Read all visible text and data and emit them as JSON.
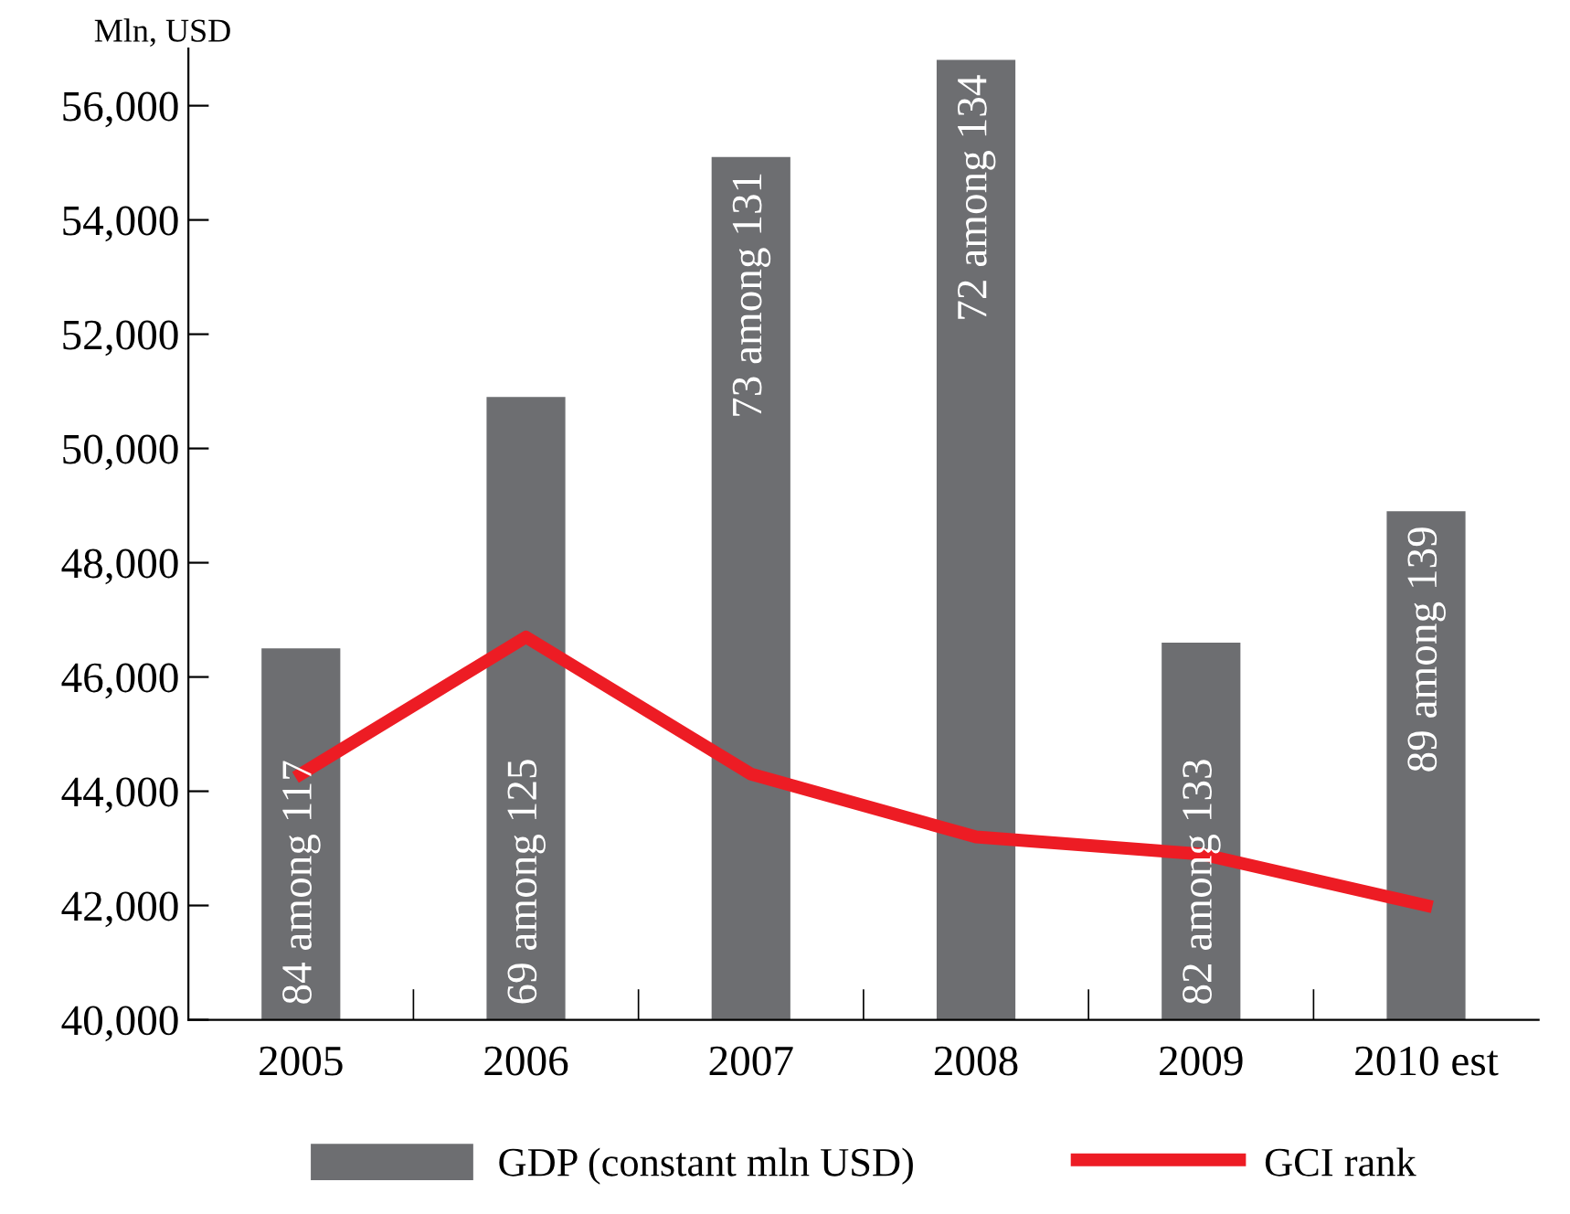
{
  "chart_data": {
    "type": "bar",
    "ylabel": "Mln, USD",
    "categories": [
      "2005",
      "2006",
      "2007",
      "2008",
      "2009",
      "2010 est"
    ],
    "series": [
      {
        "name": "GDP (constant mln USD)",
        "color": "#6d6e71",
        "values": [
          46500,
          50900,
          55100,
          56800,
          46600,
          48900
        ]
      },
      {
        "name": "GCI rank",
        "type": "line",
        "color": "#ed1c24",
        "values": [
          44300,
          46700,
          44300,
          43200,
          42900,
          42000
        ]
      }
    ],
    "annotations": [
      "84 among 117",
      "69 among 125",
      "73 among 131",
      "72 among 134",
      "82 among 133",
      "89 among 139"
    ],
    "ylim": [
      40000,
      57000
    ],
    "yticks": [
      {
        "value": 40000,
        "label": "40,000"
      },
      {
        "value": 42000,
        "label": "42,000"
      },
      {
        "value": 44000,
        "label": "44,000"
      },
      {
        "value": 46000,
        "label": "46,000"
      },
      {
        "value": 48000,
        "label": "48,000"
      },
      {
        "value": 50000,
        "label": "50,000"
      },
      {
        "value": 52000,
        "label": "52,000"
      },
      {
        "value": 54000,
        "label": "54,000"
      },
      {
        "value": 56000,
        "label": "56,000"
      }
    ],
    "grid": false,
    "legend": "bottom",
    "marker": "none",
    "line_style": "solid"
  }
}
